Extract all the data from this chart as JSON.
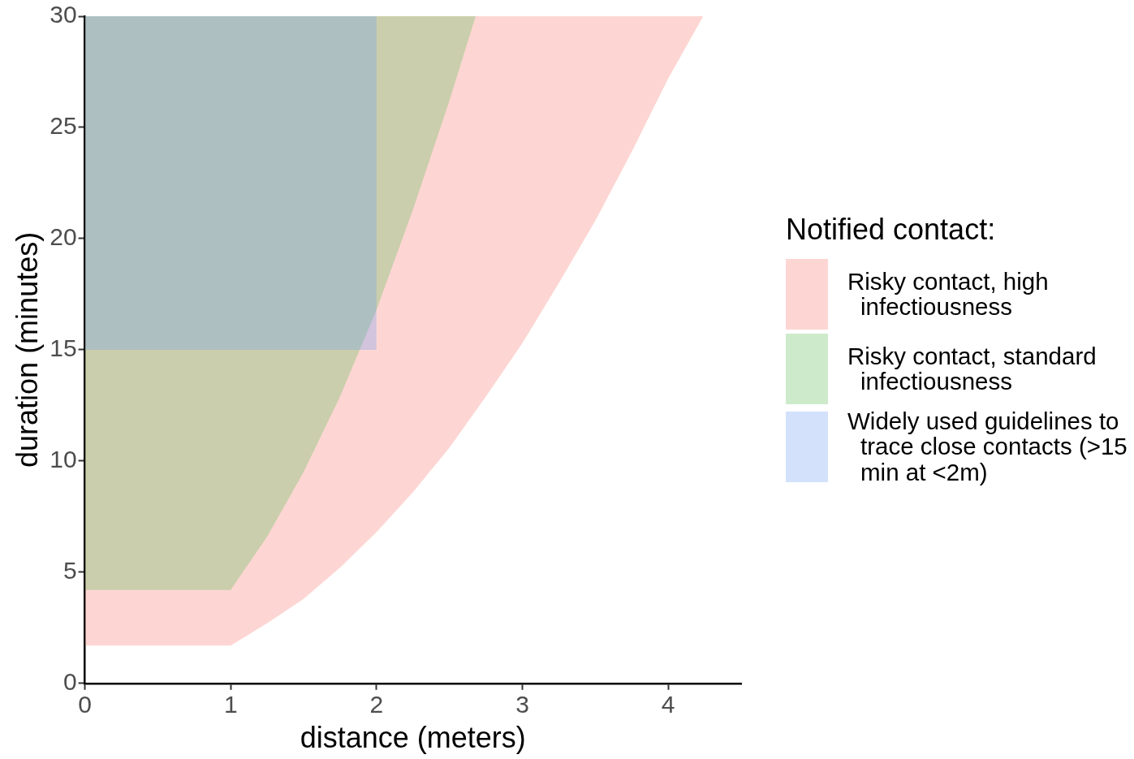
{
  "chart_data": {
    "type": "area",
    "xlabel": "distance (meters)",
    "ylabel": "duration (minutes)",
    "legend_title": "Notified contact:",
    "legend": "right",
    "xlim": [
      0,
      4.5
    ],
    "xticks": [
      0,
      1,
      2,
      3,
      4
    ],
    "ylim": [
      0,
      30
    ],
    "yticks": [
      0,
      5,
      10,
      15,
      20,
      25,
      30
    ],
    "series": [
      {
        "name": "Risky contact, high infectiousness",
        "color": "#f8766d",
        "x": [
          0,
          0,
          0.5,
          1,
          1.25,
          1.5,
          1.75,
          2,
          2.25,
          2.5,
          2.75,
          3,
          3.25,
          3.5,
          3.75,
          4,
          4.24
        ],
        "values": [
          30,
          1.7,
          1.7,
          1.7,
          2.7,
          3.8,
          5.2,
          6.8,
          8.6,
          10.6,
          12.9,
          15.3,
          18,
          20.8,
          23.9,
          27.2,
          30
        ]
      },
      {
        "name": "Risky contact, standard infectiousness",
        "color": "#58bc52",
        "x": [
          0,
          0,
          0.5,
          1,
          1.25,
          1.5,
          1.75,
          2,
          2.25,
          2.5,
          2.68
        ],
        "values": [
          30,
          4.2,
          4.2,
          4.2,
          6.6,
          9.5,
          12.9,
          16.8,
          21.3,
          26.2,
          30
        ]
      },
      {
        "name": "Widely used guidelines to trace close contacts (>15 min at <2m)",
        "color": "#6c9bf2",
        "x": [
          0,
          0,
          2,
          2
        ],
        "values": [
          30,
          15,
          15,
          30
        ]
      }
    ]
  }
}
